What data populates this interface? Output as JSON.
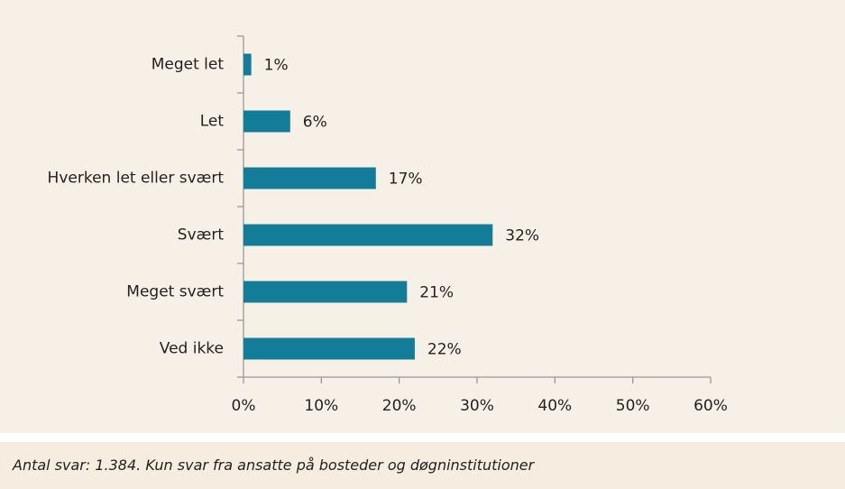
{
  "chart_data": {
    "type": "bar",
    "orientation": "horizontal",
    "categories": [
      "Meget let",
      "Let",
      "Hverken let eller svært",
      "Svært",
      "Meget svært",
      "Ved ikke"
    ],
    "values": [
      1,
      6,
      17,
      32,
      21,
      22
    ],
    "value_labels": [
      "1%",
      "6%",
      "17%",
      "32%",
      "21%",
      "22%"
    ],
    "color": "#137c98",
    "xlim": [
      0,
      60
    ],
    "xticks": [
      {
        "value": 0,
        "label": "0%"
      },
      {
        "value": 10,
        "label": "10%"
      },
      {
        "value": 20,
        "label": "20%"
      },
      {
        "value": 30,
        "label": "30%"
      },
      {
        "value": 40,
        "label": "40%"
      },
      {
        "value": 50,
        "label": "50%"
      },
      {
        "value": 60,
        "label": "60%"
      }
    ],
    "grid": false
  },
  "footnote": "Antal svar: 1.384.  Kun svar fra ansatte på bosteder og døgninstitutioner"
}
